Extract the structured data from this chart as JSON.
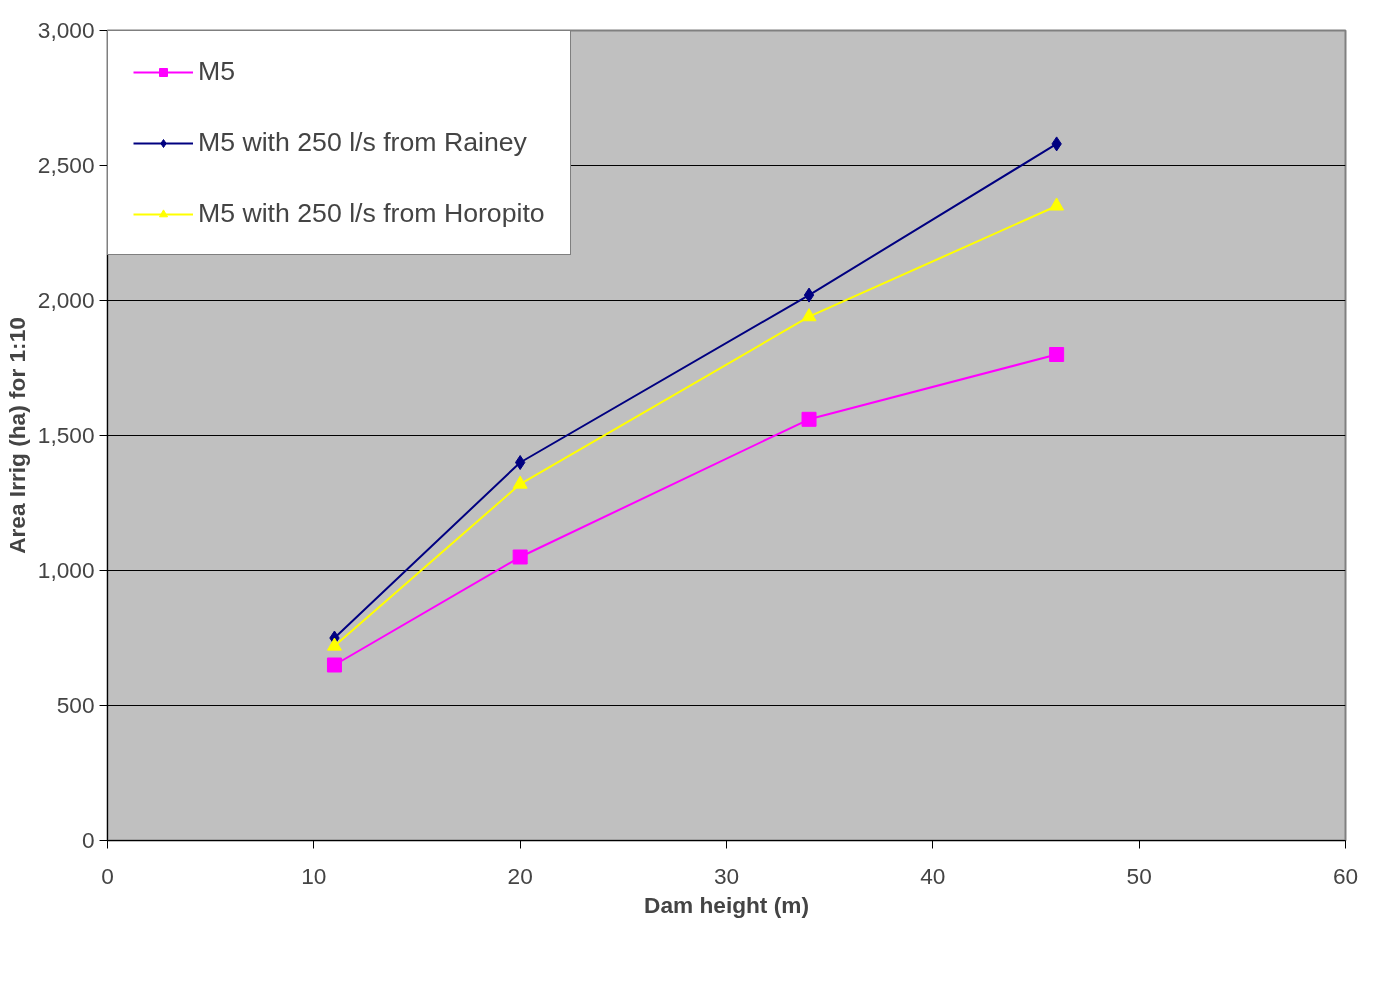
{
  "chart_data": {
    "type": "line",
    "xlabel": "Dam height (m)",
    "ylabel": "Area Irrig (ha) for 1:10",
    "x": [
      11,
      20,
      34,
      46
    ],
    "series": [
      {
        "name": "M5",
        "color": "#ff00ff",
        "marker": "square",
        "values": [
          650,
          1050,
          1560,
          1800
        ]
      },
      {
        "name": "M5 with 250 l/s from Rainey",
        "color": "#000080",
        "marker": "diamond",
        "values": [
          750,
          1400,
          2020,
          2580
        ]
      },
      {
        "name": "M5 with 250 l/s from Horopito",
        "color": "#ffff00",
        "marker": "triangle",
        "values": [
          720,
          1320,
          1940,
          2350
        ]
      }
    ],
    "xlim": [
      0,
      60
    ],
    "xticks": [
      0,
      10,
      20,
      30,
      40,
      50,
      60
    ],
    "ylim": [
      0,
      3000
    ],
    "yticks": [
      0,
      {
        "value": 500,
        "label": "500"
      },
      {
        "value": 1000,
        "label": "1,000"
      },
      {
        "value": 1500,
        "label": "1,500"
      },
      {
        "value": 2000,
        "label": "2,000"
      },
      {
        "value": 2500,
        "label": "2,500"
      },
      {
        "value": 3000,
        "label": "3,000"
      }
    ],
    "grid": "y",
    "legend": "top left",
    "line_style": "solid"
  }
}
